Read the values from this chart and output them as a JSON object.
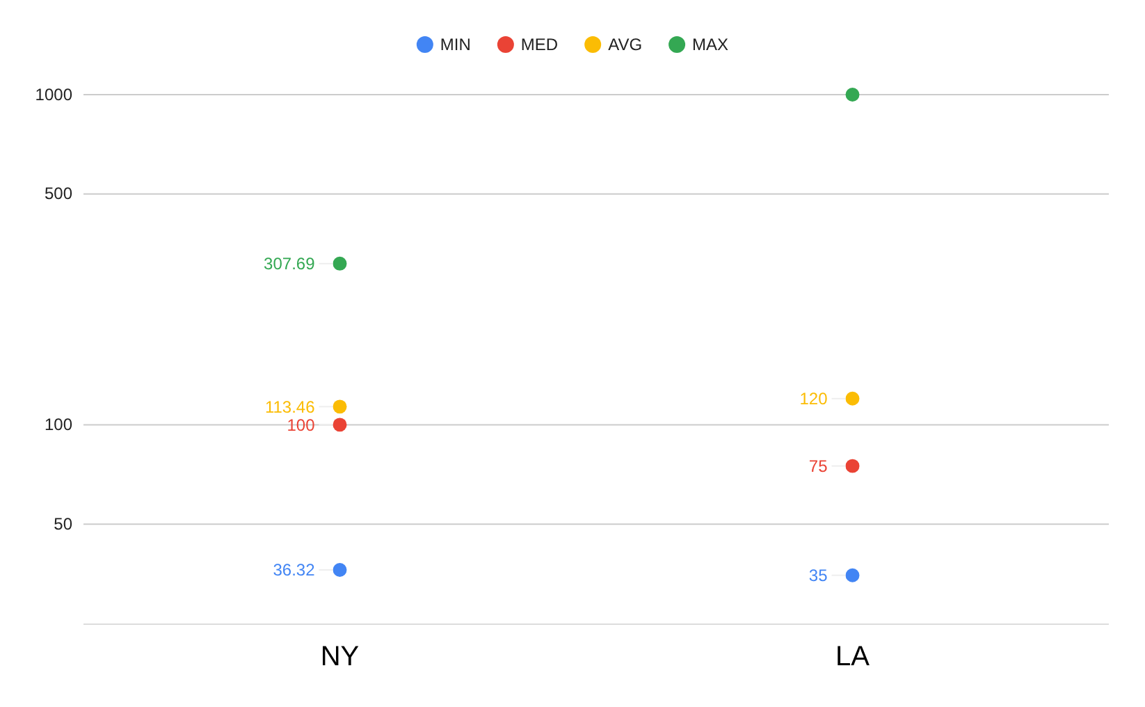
{
  "chart_data": {
    "type": "scatter",
    "categories": [
      "NY",
      "LA"
    ],
    "series": [
      {
        "name": "MIN",
        "color": "#4285f4",
        "values": [
          36.32,
          35
        ],
        "value_labels": [
          "36.32",
          "35"
        ]
      },
      {
        "name": "MED",
        "color": "#ea4335",
        "values": [
          100,
          75
        ],
        "value_labels": [
          "100",
          "75"
        ]
      },
      {
        "name": "AVG",
        "color": "#fbbc04",
        "values": [
          113.46,
          120
        ],
        "value_labels": [
          "113.46",
          "120"
        ]
      },
      {
        "name": "MAX",
        "color": "#34a853",
        "values": [
          307.69,
          1000
        ],
        "value_labels": [
          "307.69",
          null
        ]
      }
    ],
    "log": "y",
    "ylim": [
      25,
      1000
    ],
    "yticks": [
      50,
      100,
      500,
      1000
    ],
    "grid": "y",
    "legend": "top",
    "marker": "circle"
  }
}
